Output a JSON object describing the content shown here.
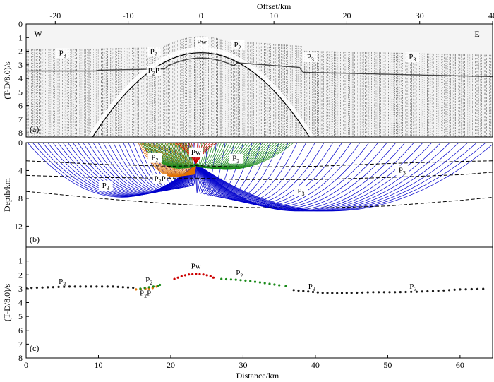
{
  "figure": {
    "description_none": ""
  },
  "chart_data": [
    {
      "panel": "a",
      "type": "heatmap",
      "content": "seismic record section",
      "top_axis_label": "Offset/km",
      "top_ticks": [
        -20,
        -10,
        0,
        10,
        20,
        30,
        40
      ],
      "xlim": [
        -24,
        40
      ],
      "ylabel": "(T-D/8.0)/s",
      "yticks": [
        0,
        1,
        2,
        3,
        4,
        5,
        6,
        7,
        8
      ],
      "ylim": [
        0,
        8.3
      ],
      "panel_label": "(a)",
      "side_labels": [
        "W",
        "E"
      ],
      "phases": [
        {
          "label": "P",
          "sub": "3",
          "x": -19,
          "y": 2.3
        },
        {
          "label": "P",
          "sub": "2",
          "x": -6.5,
          "y": 2.2
        },
        {
          "label": "P",
          "sub": "2",
          "suffix": "P",
          "x": -6.5,
          "y": 3.6
        },
        {
          "label": "Pw",
          "x": 0.1,
          "y": 1.5
        },
        {
          "label": "P",
          "sub": "2",
          "x": 5,
          "y": 1.7
        },
        {
          "label": "P",
          "sub": "3",
          "x": 15,
          "y": 2.6
        },
        {
          "label": "P",
          "sub": "3",
          "x": 29,
          "y": 2.6
        }
      ]
    },
    {
      "panel": "b",
      "type": "diagram",
      "content": "ray-tracing diagram",
      "ylabel": "Depth/km",
      "yticks": [
        0,
        4,
        8,
        12
      ],
      "ylim": [
        0,
        15
      ],
      "panel_label": "(b)",
      "legend": "none",
      "phases": [
        {
          "label": "P",
          "sub": "2",
          "x": 17.8,
          "y": 2.5,
          "color": "#1a8a1a"
        },
        {
          "label": "Pw",
          "x": 23.5,
          "y": 1.7,
          "color": "#cc0000"
        },
        {
          "label": "P",
          "sub": "2",
          "suffix": "P",
          "x": 18.5,
          "y": 5.5,
          "color": "#e07000"
        },
        {
          "label": "P",
          "sub": "2",
          "x": 29,
          "y": 2.6,
          "color": "#1a8a1a"
        },
        {
          "label": "P",
          "sub": "3",
          "x": 11,
          "y": 6.5,
          "color": "#0000cc"
        },
        {
          "label": "P",
          "sub": "3",
          "x": 38,
          "y": 7.3,
          "color": "#0000cc"
        },
        {
          "label": "P",
          "sub": "3",
          "x": 52,
          "y": 4.3,
          "color": "#0000cc"
        }
      ],
      "interfaces_depth_km": [
        {
          "x": [
            0,
            10,
            20,
            23.5,
            30,
            40,
            50,
            60,
            65
          ],
          "depth": [
            2.6,
            3.1,
            3.4,
            3.3,
            3.5,
            3.4,
            3.0,
            2.7,
            2.6
          ]
        },
        {
          "x": [
            0,
            10,
            20,
            23.5,
            30,
            40,
            50,
            60,
            65
          ],
          "depth": [
            4.7,
            5.0,
            5.1,
            5.1,
            5.3,
            5.3,
            5.0,
            4.6,
            4.2
          ]
        },
        {
          "x": [
            0,
            10,
            20,
            30,
            40,
            50,
            60,
            65
          ],
          "depth": [
            7.0,
            8.0,
            8.8,
            9.3,
            9.4,
            9.1,
            8.3,
            7.8
          ]
        }
      ],
      "ray_groups": [
        {
          "phase": "P3",
          "color": "#0000cc",
          "x": [
            0.2,
            23.2
          ],
          "turn_depth": 7.5
        },
        {
          "phase": "P3",
          "color": "#0000cc",
          "x": [
            23.8,
            64.8
          ],
          "turn_depth": 9.0
        },
        {
          "phase": "P2P",
          "color": "#e07000",
          "x": [
            15.5,
            22.8
          ],
          "turn_depth": 5.1
        },
        {
          "phase": "P2",
          "color": "#1a8a1a",
          "x": [
            15.8,
            22.8
          ],
          "turn_depth": 3.4
        },
        {
          "phase": "P2",
          "color": "#1a8a1a",
          "x": [
            24.3,
            37
          ],
          "turn_depth": 3.4
        },
        {
          "phase": "Pw",
          "color": "#cc0000",
          "x": [
            20.5,
            26.5
          ],
          "turn_depth": 2.9
        }
      ]
    },
    {
      "panel": "c",
      "type": "scatter",
      "content": "observed travel-time picks",
      "xlabel": "Distance/km",
      "xticks": [
        0,
        10,
        20,
        30,
        40,
        50,
        60
      ],
      "xlim": [
        0,
        64.5
      ],
      "ylabel": "(T-D/8.0)/s",
      "yticks": [
        1,
        2,
        3,
        4,
        5,
        6,
        7,
        8
      ],
      "ylim": [
        0,
        8
      ],
      "panel_label": "(c)",
      "phases": [
        {
          "label": "P",
          "sub": "3",
          "x": 5,
          "y": 2.65
        },
        {
          "label": "P",
          "sub": "2",
          "x": 17,
          "y": 2.55
        },
        {
          "label": "P",
          "sub": "2",
          "suffix": "P",
          "x": 16.5,
          "y": 3.5
        },
        {
          "label": "Pw",
          "x": 23.5,
          "y": 1.55
        },
        {
          "label": "P",
          "sub": "2",
          "x": 29.5,
          "y": 2.05
        },
        {
          "label": "P",
          "sub": "3",
          "x": 39.5,
          "y": 3.0
        },
        {
          "label": "P",
          "sub": "3",
          "x": 53.5,
          "y": 3.0
        }
      ],
      "series": [
        {
          "name": "P3 (west)",
          "x": [
            0,
            3,
            6,
            9,
            12,
            15.5
          ],
          "y": [
            2.95,
            2.9,
            2.85,
            2.85,
            2.85,
            2.95
          ],
          "color": "#1a1a1a"
        },
        {
          "name": "P2P",
          "x": [
            15.2,
            16.5,
            17.5,
            18.6
          ],
          "y": [
            3.05,
            3.0,
            2.95,
            2.75
          ],
          "color": "#e07000"
        },
        {
          "name": "P2 (west)",
          "x": [
            15.8,
            17,
            18.2,
            18.8
          ],
          "y": [
            3.0,
            2.9,
            2.8,
            2.65
          ],
          "color": "#1a8a1a"
        },
        {
          "name": "Pw",
          "x": [
            20.5,
            21.5,
            22.5,
            23.5,
            24.5,
            25.5,
            26.3
          ],
          "y": [
            2.3,
            2.1,
            1.97,
            1.93,
            1.97,
            2.1,
            2.3
          ],
          "color": "#cc0000"
        },
        {
          "name": "P2 (east)",
          "x": [
            27,
            29,
            31,
            33,
            35,
            36.8
          ],
          "y": [
            2.3,
            2.35,
            2.45,
            2.6,
            2.75,
            2.9
          ],
          "color": "#1a8a1a"
        },
        {
          "name": "P3 (east)",
          "x": [
            37,
            39,
            41,
            43,
            45,
            48,
            51,
            54,
            57,
            60,
            64
          ],
          "y": [
            3.1,
            3.2,
            3.3,
            3.32,
            3.3,
            3.25,
            3.25,
            3.22,
            3.15,
            3.05,
            3.0
          ],
          "color": "#1a1a1a"
        }
      ]
    }
  ]
}
